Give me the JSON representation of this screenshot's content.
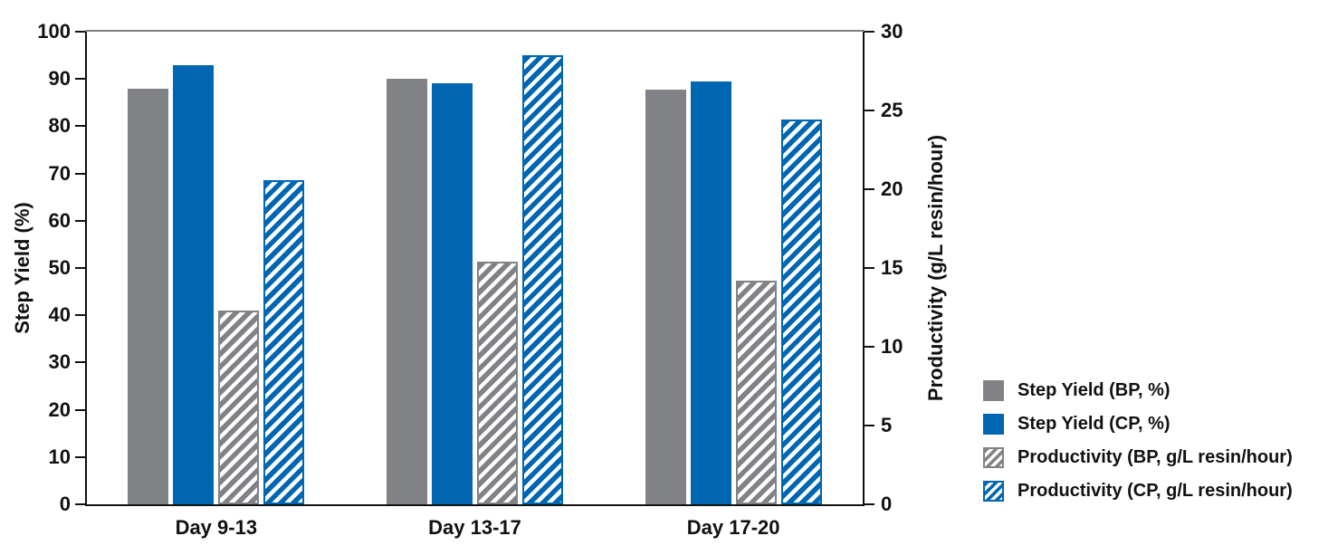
{
  "chart_data": {
    "type": "bar",
    "title": "",
    "categories": [
      "Day 9-13",
      "Day 13-17",
      "Day 17-20"
    ],
    "series": [
      {
        "name": "Step Yield (BP, %)",
        "axis": "left",
        "style": "solid",
        "color": "#808285",
        "values": [
          87.9,
          90.0,
          87.7
        ]
      },
      {
        "name": "Step Yield (CP, %)",
        "axis": "left",
        "style": "solid",
        "color": "#0066B2",
        "values": [
          93.0,
          89.0,
          89.5
        ]
      },
      {
        "name": "Productivity (BP, g/L resin/hour)",
        "axis": "right",
        "style": "hatched",
        "color": "#808285",
        "values": [
          12.3,
          15.4,
          14.2
        ]
      },
      {
        "name": "Productivity (CP, g/L resin/hour)",
        "axis": "right",
        "style": "hatched",
        "color": "#0066B2",
        "values": [
          20.6,
          28.5,
          24.4
        ]
      }
    ],
    "left_axis": {
      "label": "Step Yield (%)",
      "min": 0,
      "max": 100,
      "ticks": [
        0,
        10,
        20,
        30,
        40,
        50,
        60,
        70,
        80,
        90,
        100
      ]
    },
    "right_axis": {
      "label": "Productivity (g/L resin/hour)",
      "min": 0,
      "max": 30,
      "ticks": [
        0,
        5,
        10,
        15,
        20,
        25,
        30
      ]
    },
    "legend_position": "right",
    "grid": false
  },
  "colors": {
    "bar_gray": "#808285",
    "bar_blue": "#0066B2",
    "axis": "#111111",
    "top_frame": "#808080",
    "background": "#ffffff"
  }
}
